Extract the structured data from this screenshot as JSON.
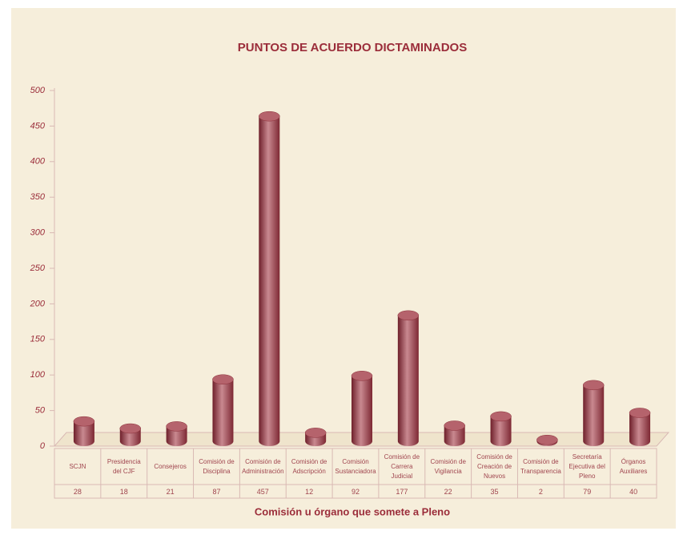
{
  "chart_data": {
    "type": "bar3d",
    "title": "PUNTOS DE ACUERDO DICTAMINADOS",
    "x_label": "Comisión u órgano que somete a Pleno",
    "categories": [
      "SCJN",
      "Presidencia del CJF",
      "Consejeros",
      "Comisión de Disciplina",
      "Comisión de Administración",
      "Comisión de Adscripción",
      "Comisión Sustanciadora",
      "Comisión de Carrera Judicial",
      "Comisión de Vigilancia",
      "Comisión de Creación de Nuevos",
      "Comisión de Transparencia",
      "Secretaría Ejecutiva del Pleno",
      "Órganos Auxiliares"
    ],
    "values": [
      28,
      18,
      21,
      87,
      457,
      12,
      92,
      177,
      22,
      35,
      2,
      79,
      40
    ],
    "color": "#9b3a45",
    "ylim": [
      0,
      500
    ],
    "yticks": [
      0,
      50,
      100,
      150,
      200,
      250,
      300,
      350,
      400,
      450,
      500
    ],
    "data_table": true
  }
}
